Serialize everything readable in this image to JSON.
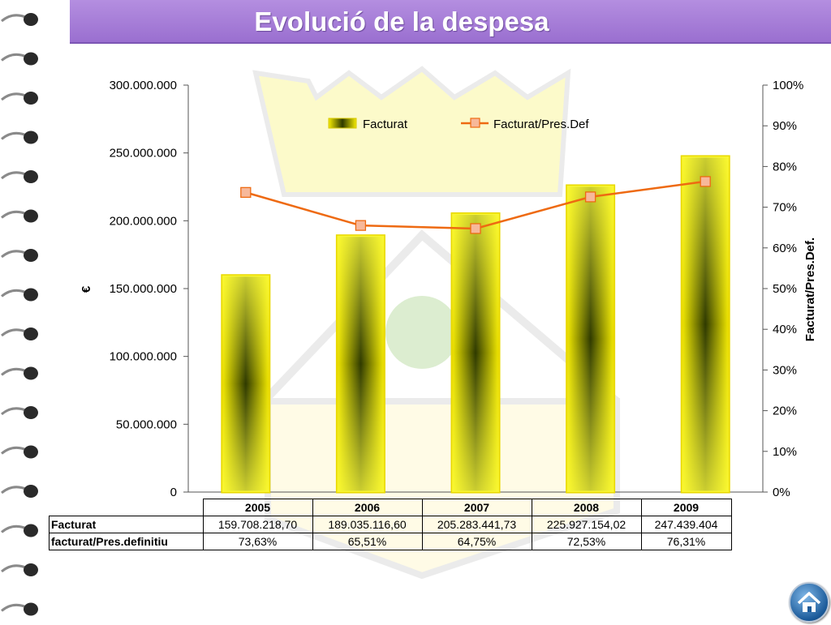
{
  "slide": {
    "title": "Evolució de la despesa",
    "colors": {
      "title_bar": "#a67ad8",
      "bar": "#f2e600",
      "bar_dark": "#2f3a00",
      "line": "#ee6a12",
      "marker": "#f7b89a"
    }
  },
  "chart_data": {
    "type": "bar",
    "categories": [
      "2005",
      "2006",
      "2007",
      "2008",
      "2009"
    ],
    "series": [
      {
        "name": "Facturat",
        "type": "bar",
        "axis": "left",
        "values": [
          159708218.7,
          189035116.6,
          205283441.73,
          225927154.02,
          247439404
        ]
      },
      {
        "name": "Facturat/Pres.Def",
        "type": "line",
        "axis": "right",
        "values": [
          73.63,
          65.51,
          64.75,
          72.53,
          76.31
        ]
      }
    ],
    "ylabel": "€",
    "y2label": "Facturat/Pres.Def.",
    "ylim": [
      0,
      300000000
    ],
    "y2lim": [
      0,
      100
    ],
    "yticks": [
      "0",
      "50.000.000",
      "100.000.000",
      "150.000.000",
      "200.000.000",
      "250.000.000",
      "300.000.000"
    ],
    "y2ticks": [
      "0%",
      "10%",
      "20%",
      "30%",
      "40%",
      "50%",
      "60%",
      "70%",
      "80%",
      "90%",
      "100%"
    ],
    "legend": "top-center",
    "grid": false
  },
  "table": {
    "header": [
      "2005",
      "2006",
      "2007",
      "2008",
      "2009"
    ],
    "rows": [
      {
        "label": "Facturat",
        "cells": [
          "159.708.218,70",
          "189.035.116,60",
          "205.283.441,73",
          "225.927.154,02",
          "247.439.404"
        ]
      },
      {
        "label": "facturat/Pres.definitiu",
        "cells": [
          "73,63%",
          "65,51%",
          "64,75%",
          "72,53%",
          "76,31%"
        ]
      }
    ]
  },
  "nav": {
    "home_icon": "home-icon"
  }
}
